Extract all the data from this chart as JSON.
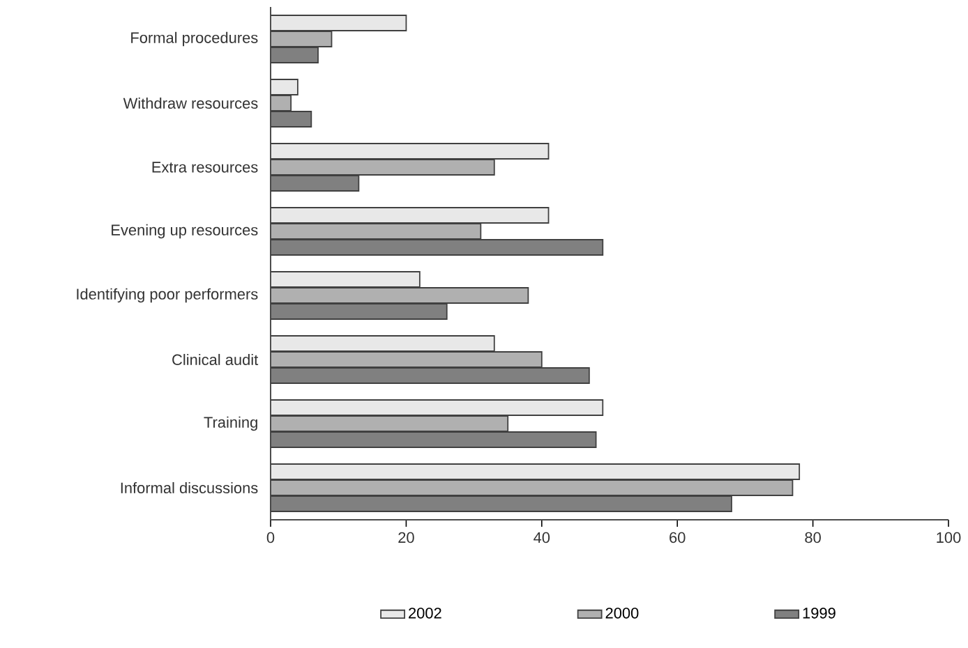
{
  "chart_data": {
    "type": "bar",
    "orientation": "horizontal",
    "categories": [
      "Formal procedures",
      "Withdraw resources",
      "Extra resources",
      "Evening up resources",
      "Identifying poor performers",
      "Clinical audit",
      "Training",
      "Informal discussions"
    ],
    "series": [
      {
        "name": "2002",
        "color": "#e8e8e8",
        "values": [
          20,
          4,
          41,
          41,
          22,
          33,
          49,
          78
        ]
      },
      {
        "name": "2000",
        "color": "#b0b0b0",
        "values": [
          9,
          3,
          33,
          31,
          38,
          40,
          35,
          77
        ]
      },
      {
        "name": "1999",
        "color": "#808080",
        "values": [
          7,
          6,
          13,
          49,
          26,
          47,
          48,
          68
        ]
      }
    ],
    "xlim": [
      0,
      100
    ],
    "xticks": [
      0,
      20,
      40,
      60,
      80,
      100
    ],
    "grid": false,
    "legend": "bottom"
  }
}
